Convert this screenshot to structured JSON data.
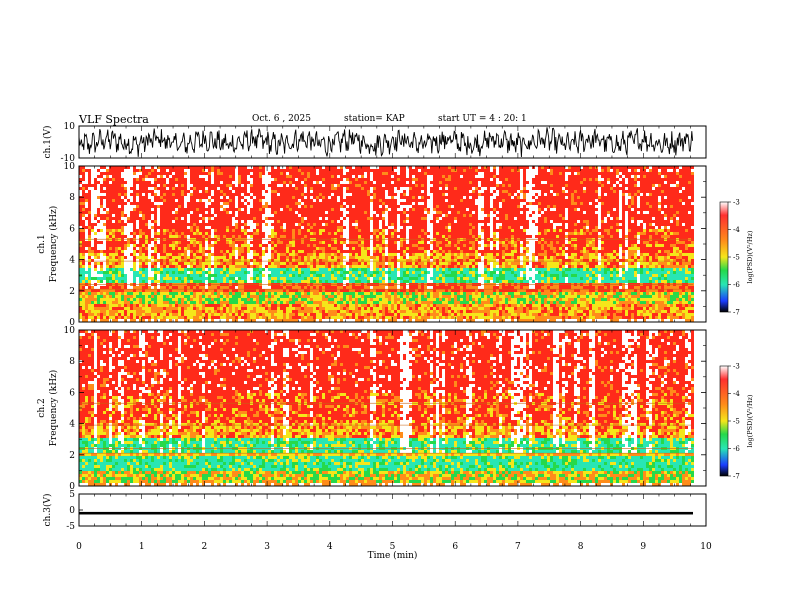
{
  "header": {
    "title": "VLF Spectra",
    "date": "Oct. 6 , 2025",
    "station": "station= KAP",
    "start_ut": "start UT =  4 : 20: 1"
  },
  "chart_data": [
    {
      "type": "line",
      "panel": "ch1-waveform",
      "ylabel": "ch.1(V)",
      "ylim": [
        -10,
        10
      ],
      "yticks": [
        "10",
        "-10"
      ],
      "xlim": [
        0,
        10
      ],
      "signal": "noisy oscillation roughly between -8 and +9 V"
    },
    {
      "type": "heatmap",
      "panel": "ch1-spectrogram",
      "ylabel": "ch.1\nFrequency (kHz)",
      "ylabel_lines": [
        "ch.1",
        "Frequency (kHz)"
      ],
      "ylim": [
        0,
        10
      ],
      "yticks": [
        "10",
        "8",
        "6",
        "4",
        "2",
        "0"
      ],
      "colorbar": {
        "label": "log(PSD)(V²/Hz)",
        "range": [
          -7,
          -3
        ],
        "ticks": [
          "-3",
          "-4",
          "-5",
          "-6",
          "-7"
        ]
      }
    },
    {
      "type": "heatmap",
      "panel": "ch2-spectrogram",
      "ylabel": "ch.2\nFrequency (kHz)",
      "ylabel_lines": [
        "ch.2",
        "Frequency (kHz)"
      ],
      "ylim": [
        0,
        10
      ],
      "yticks": [
        "10",
        "8",
        "6",
        "4",
        "2",
        "0"
      ],
      "colorbar": {
        "label": "log(PSD)(V²/Hz)",
        "range": [
          -7,
          -3
        ],
        "ticks": [
          "-3",
          "-4",
          "-5",
          "-6",
          "-7"
        ]
      }
    },
    {
      "type": "line",
      "panel": "ch3-waveform",
      "ylabel": "ch.3(V)",
      "ylim": [
        -5,
        5
      ],
      "yticks": [
        "5",
        "0",
        "-5"
      ],
      "signal": "narrow band near -1 V"
    }
  ],
  "time_axis": {
    "label": "Time (min)",
    "range": [
      0,
      10
    ],
    "ticks": [
      "0",
      "1",
      "2",
      "3",
      "4",
      "5",
      "6",
      "7",
      "8",
      "9",
      "10"
    ]
  },
  "colors": {
    "red": "#ff2a1a",
    "orange": "#ff8c1a",
    "yellow": "#f5e61a",
    "green": "#26d94a",
    "cyan": "#28e6b4",
    "blue": "#1a3cff",
    "black": "#000000"
  }
}
